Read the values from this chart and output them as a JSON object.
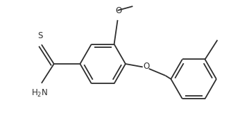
{
  "background": "#ffffff",
  "line_color": "#2d2d2d",
  "line_width": 1.3,
  "font_size": 8.5,
  "figsize": [
    3.46,
    1.8
  ],
  "dpi": 100,
  "xlim": [
    0,
    346
  ],
  "ylim": [
    0,
    180
  ]
}
